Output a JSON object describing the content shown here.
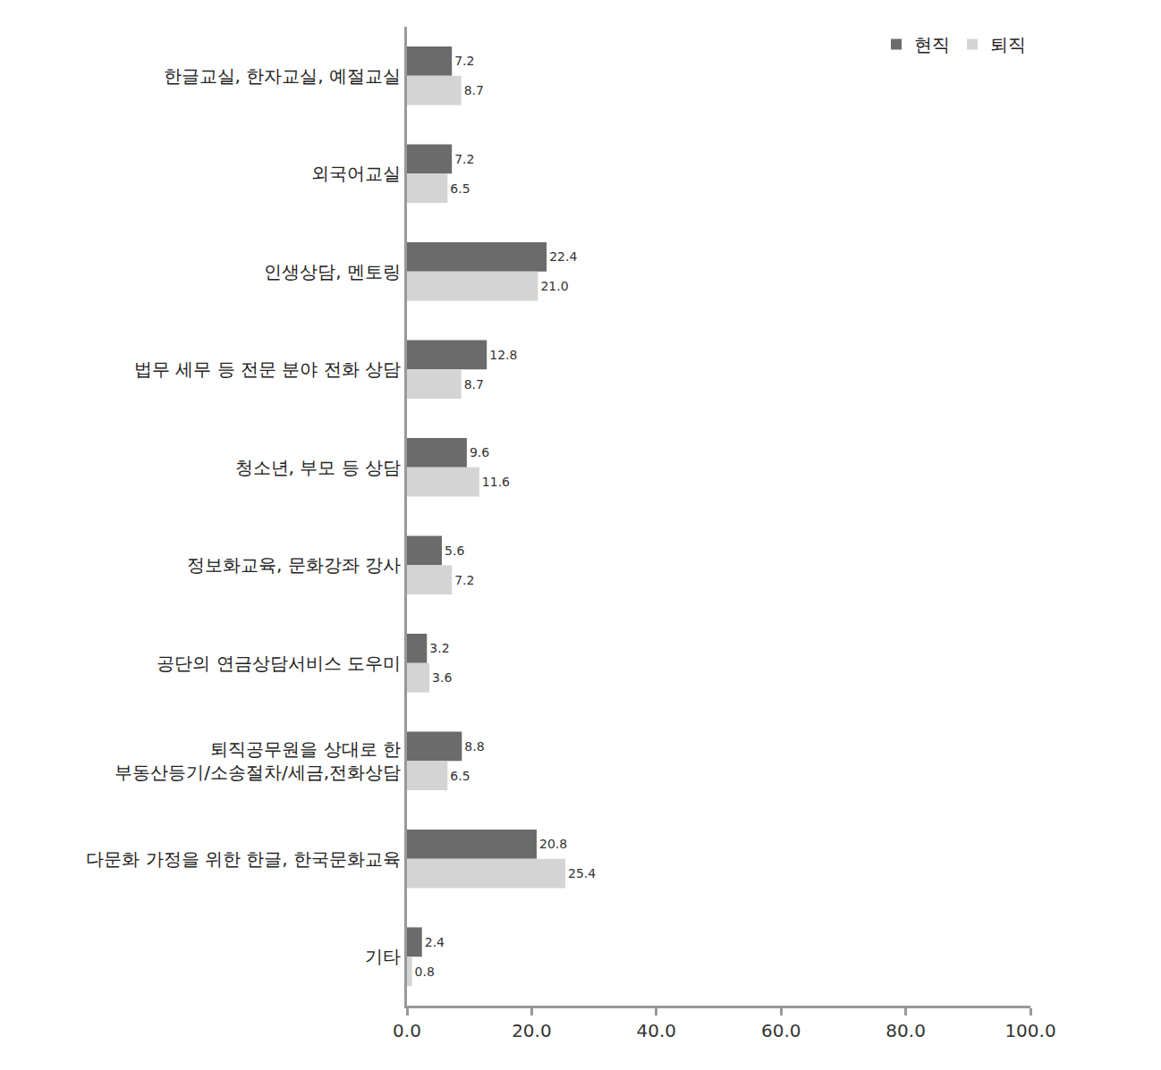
{
  "chart_data": {
    "type": "bar",
    "orientation": "horizontal",
    "categories": [
      "한글교실, 한자교실, 예절교실",
      "외국어교실",
      "인생상담, 멘토링",
      "법무 세무 등 전문 분야 전화 상담",
      "청소년, 부모 등 상담",
      "정보화교육, 문화강좌 강사",
      "공단의 연금상담서비스 도우미",
      "퇴직공무원을 상대로 한\n부동산등기/소송절차/세금,전화상담",
      "다문화 가정을 위한 한글, 한국문화교육",
      "기타"
    ],
    "series": [
      {
        "name": "현직",
        "color": "#6b6b6b",
        "values": [
          7.2,
          7.2,
          22.4,
          12.8,
          9.6,
          5.6,
          3.2,
          8.8,
          20.8,
          2.4
        ],
        "value_labels": [
          "7.2",
          "7.2",
          "22.4",
          "12.8",
          "9.6",
          "5.6",
          "3.2",
          "8.8",
          "20.8",
          "2.4"
        ]
      },
      {
        "name": "퇴직",
        "color": "#d4d4d4",
        "values": [
          8.7,
          6.5,
          21.0,
          8.7,
          11.6,
          7.2,
          3.6,
          6.5,
          25.4,
          0.8
        ],
        "value_labels": [
          "8.7",
          "6.5",
          "21.0",
          "8.7",
          "11.6",
          "7.2",
          "3.6",
          "6.5",
          "25.4",
          "0.8"
        ]
      }
    ],
    "xlim": [
      0,
      100
    ],
    "xticks": [
      {
        "value": 0,
        "label": "0.0"
      },
      {
        "value": 20,
        "label": "20.0"
      },
      {
        "value": 40,
        "label": "40.0"
      },
      {
        "value": 60,
        "label": "60.0"
      },
      {
        "value": 80,
        "label": "80.0"
      },
      {
        "value": 100,
        "label": "100.0"
      }
    ],
    "grid": false,
    "legend": "top right",
    "data_labels": true
  }
}
